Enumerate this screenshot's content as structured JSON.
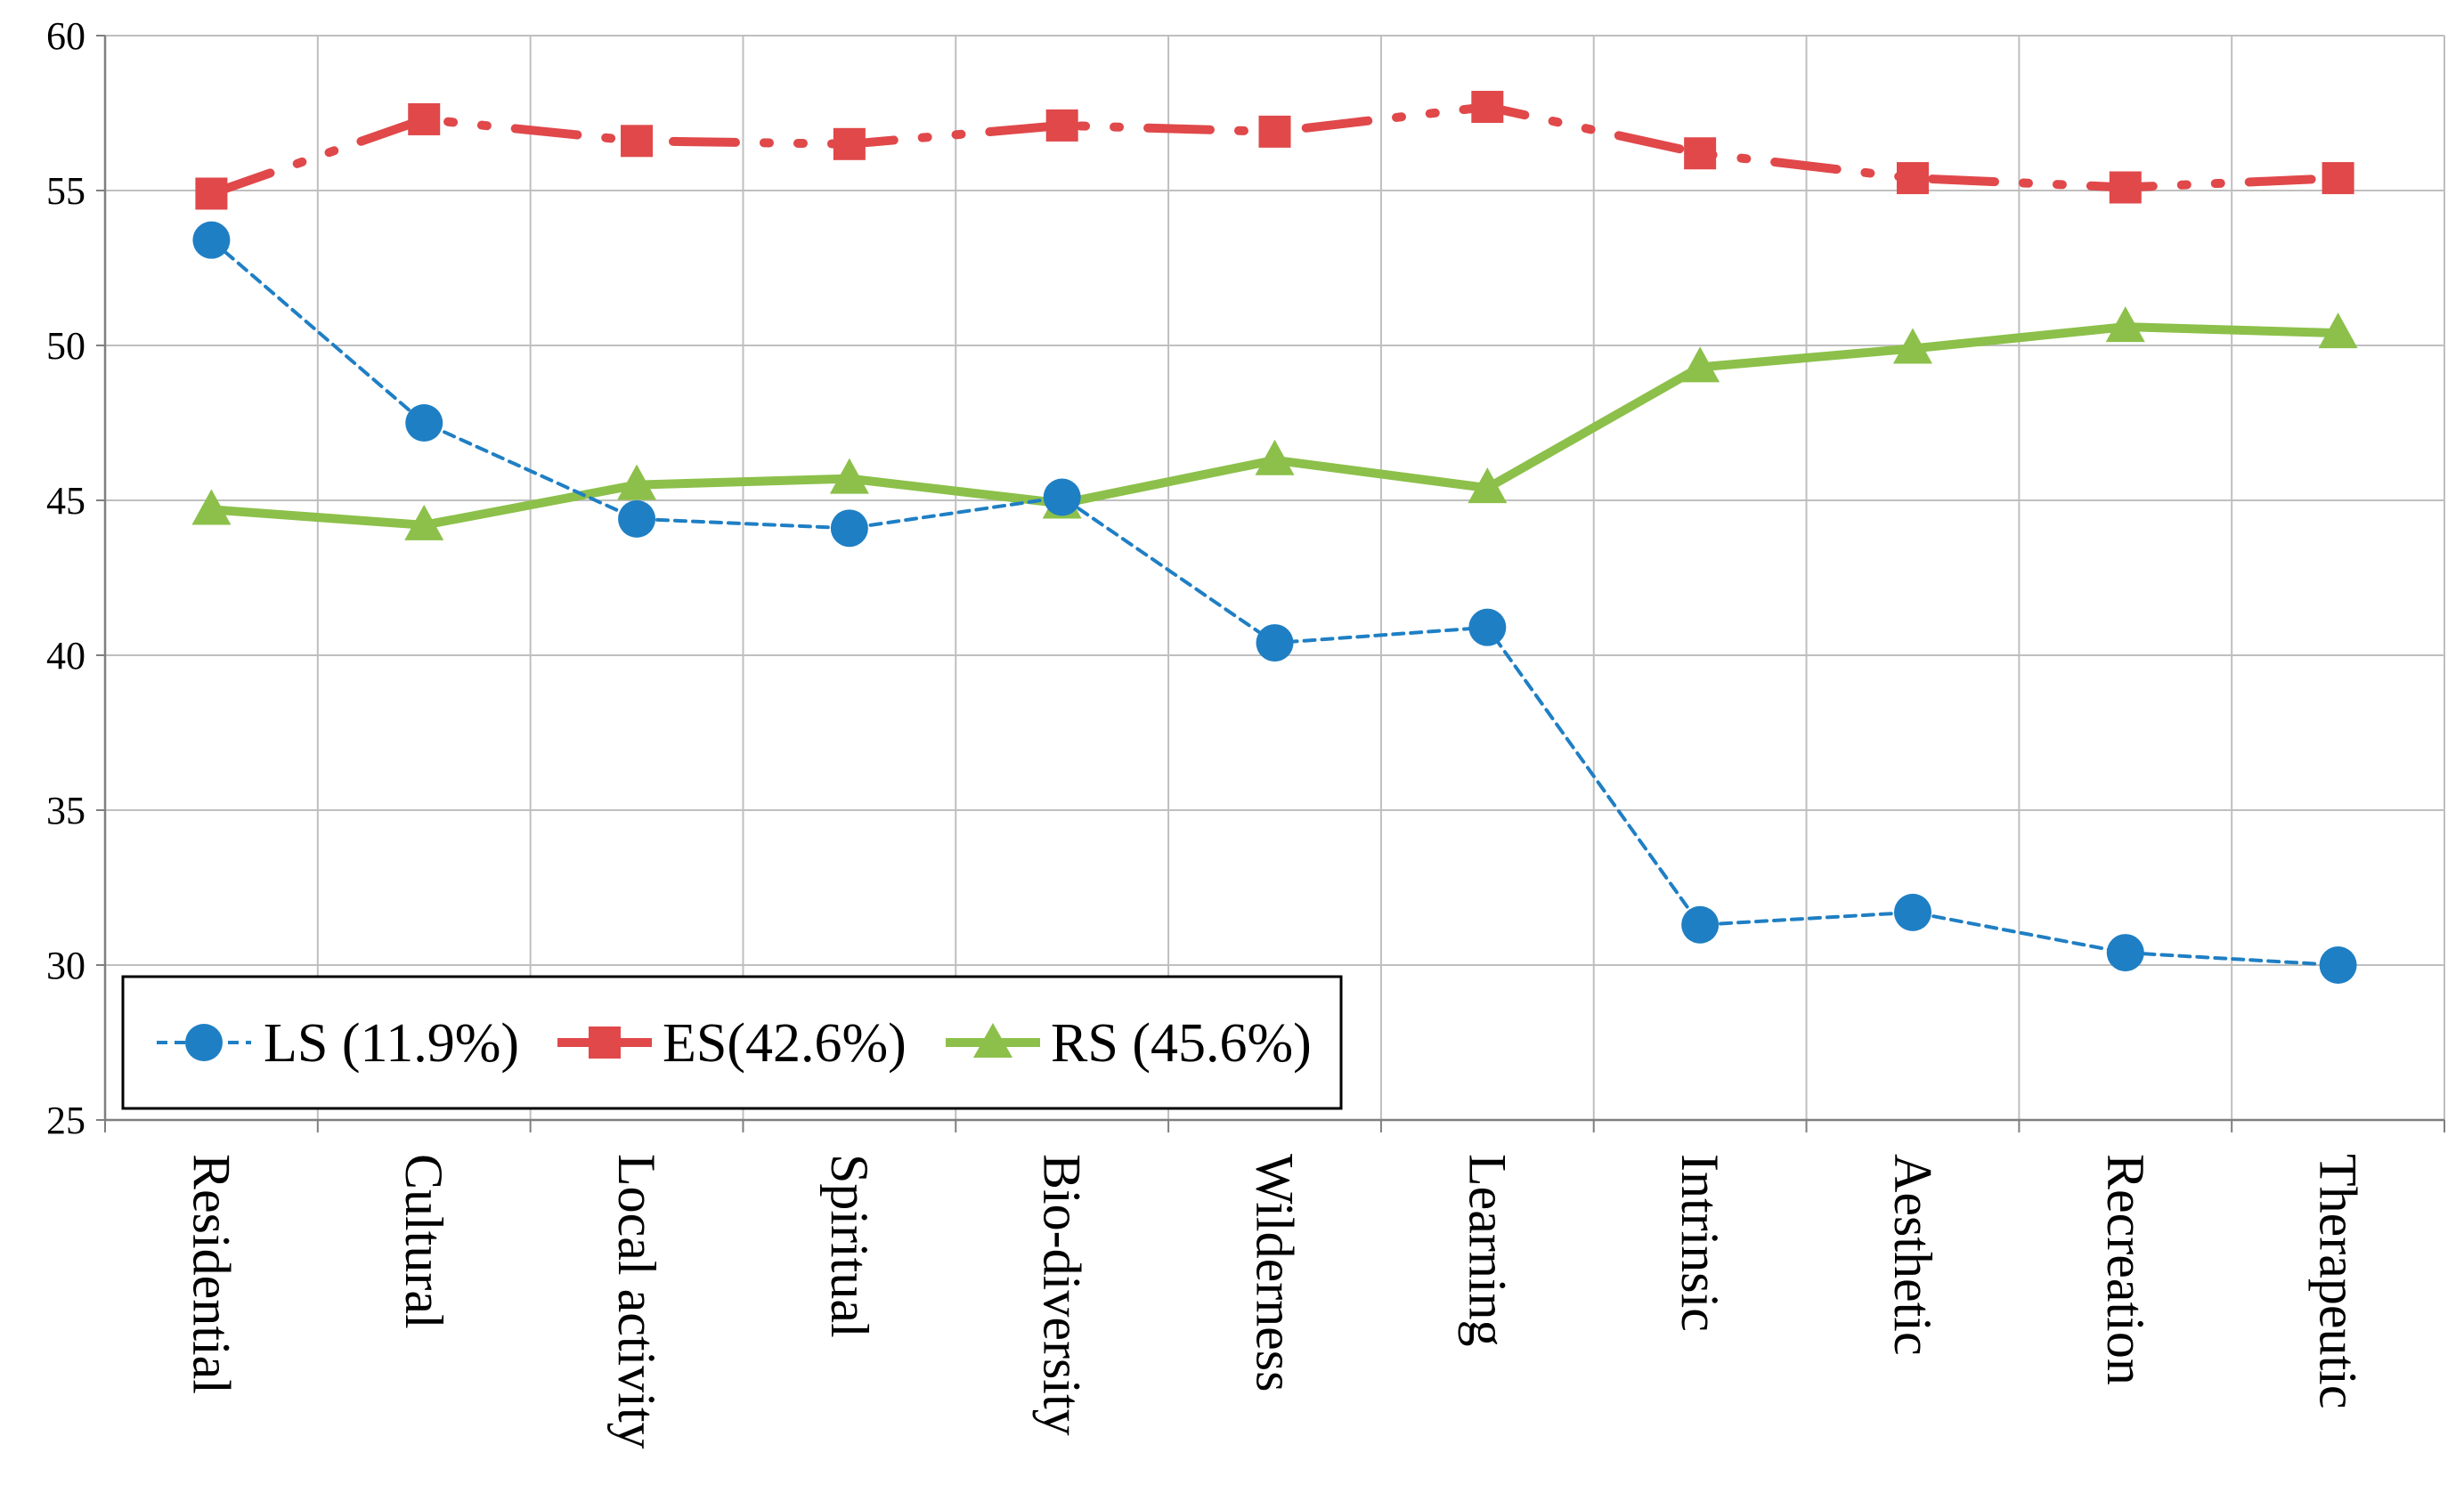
{
  "chart_data": {
    "type": "line",
    "title": "",
    "xlabel": "",
    "ylabel": "",
    "ylim": [
      25,
      60
    ],
    "ytick_step": 5,
    "grid": true,
    "legend_position": "bottom-left",
    "categories": [
      "Residential",
      "Cultural",
      "Local activity",
      "Spiritual",
      "Bio-diversity",
      "Wilderness",
      "Learning",
      "Intrinsic",
      "Aesthetic",
      "Recreation",
      "Therapeutic"
    ],
    "series": [
      {
        "name": "LS (11.9%)",
        "color": "#1f7fc4",
        "line": "dashed",
        "marker": "circle",
        "values": [
          53.4,
          47.5,
          44.4,
          44.1,
          45.1,
          40.4,
          40.9,
          31.3,
          31.7,
          30.4,
          30.0
        ]
      },
      {
        "name": "ES(42.6%)",
        "color": "#e0484a",
        "line": "dash-dot",
        "marker": "square",
        "values": [
          54.9,
          57.3,
          56.6,
          56.5,
          57.1,
          56.9,
          57.7,
          56.2,
          55.4,
          55.1,
          55.4
        ]
      },
      {
        "name": "RS (45.6%)",
        "color": "#8cc04a",
        "line": "solid",
        "marker": "triangle",
        "values": [
          44.7,
          44.2,
          45.5,
          45.7,
          44.9,
          46.3,
          45.4,
          49.3,
          49.9,
          50.6,
          50.4
        ]
      }
    ]
  }
}
